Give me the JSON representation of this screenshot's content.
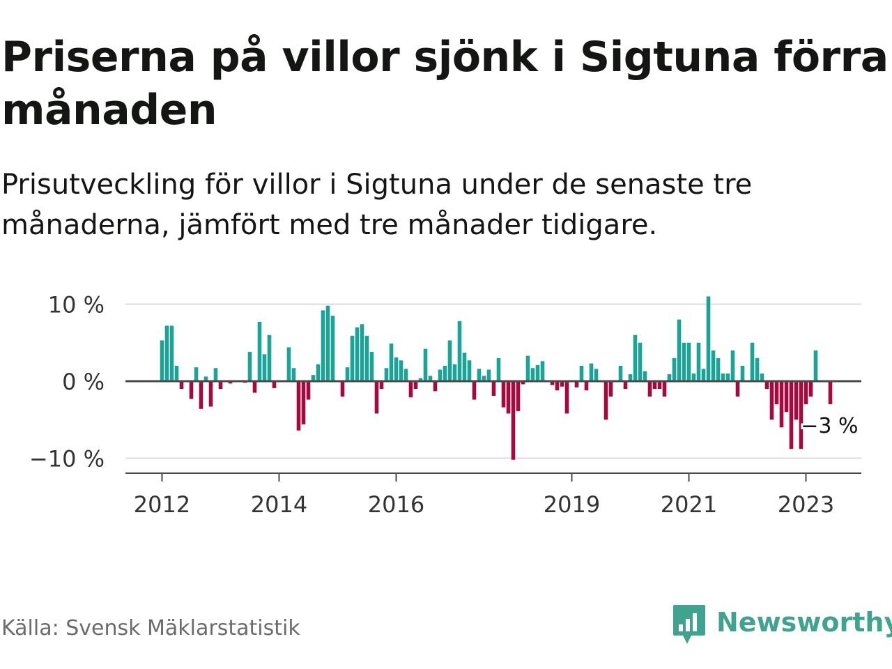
{
  "title": "Priserna på villor sjönk i Sigtuna förra månaden",
  "subtitle": "Prisutveckling för villor i Sigtuna under de senaste tre månaderna, jämfört med tre månader tidigare.",
  "source": "Källa: Svensk Mäklarstatistik",
  "logo": {
    "text": "Newsworthy",
    "icon": "newsworthy-logo-icon"
  },
  "colors": {
    "positive": "#1aa396",
    "negative": "#a50a3e",
    "grid": "#dddddd",
    "zero_line": "#4a4a4a",
    "axis_text": "#333333"
  },
  "chart_data": {
    "type": "bar",
    "title": "Priserna på villor sjönk i Sigtuna förra månaden",
    "xlabel": "",
    "ylabel": "",
    "ylim": [
      -12,
      12
    ],
    "y_ticks": [
      {
        "value": 10,
        "label": "10 %"
      },
      {
        "value": 0,
        "label": "0 %"
      },
      {
        "value": -10,
        "label": "−10 %"
      }
    ],
    "start": "2012-01",
    "x_ticks": [
      {
        "index": 0,
        "label": "2012"
      },
      {
        "index": 24,
        "label": "2014"
      },
      {
        "index": 48,
        "label": "2016"
      },
      {
        "index": 84,
        "label": "2019"
      },
      {
        "index": 108,
        "label": "2021"
      },
      {
        "index": 132,
        "label": "2023"
      }
    ],
    "last_label": "−3 %",
    "units": "%",
    "values": [
      5.3,
      7.2,
      7.2,
      2.0,
      -1.0,
      0,
      -2.3,
      1.8,
      -3.6,
      0.6,
      -3.3,
      1.7,
      -1.0,
      0,
      -0.3,
      0,
      0,
      -0.2,
      3.8,
      -1.5,
      7.7,
      3.5,
      6.0,
      -0.9,
      0,
      0,
      4.4,
      1.7,
      -6.4,
      -5.6,
      -2.4,
      0.8,
      2.2,
      9.2,
      9.8,
      8.5,
      0,
      -2.0,
      1.8,
      5.9,
      7.0,
      7.4,
      5.9,
      3.8,
      -4.2,
      -1.0,
      1.7,
      4.9,
      3.1,
      2.7,
      1.6,
      -2.1,
      -1.0,
      0.4,
      4.2,
      0.7,
      -1.3,
      1.5,
      2.0,
      5.3,
      2.2,
      7.8,
      3.7,
      2.7,
      -2.4,
      1.6,
      0.7,
      1.5,
      -1.9,
      3.0,
      -3.4,
      -4.2,
      -10.2,
      -3.9,
      -0.4,
      3.3,
      1.7,
      2.1,
      2.6,
      0,
      -0.5,
      -1.2,
      -0.7,
      -4.2,
      0,
      -0.8,
      2.0,
      -1.2,
      2.3,
      1.6,
      0,
      -5.0,
      -2.0,
      0,
      2.0,
      -1.0,
      0.9,
      6.0,
      5.0,
      1.3,
      -2.0,
      -1.0,
      -1.0,
      -2.0,
      0.9,
      3.0,
      8.0,
      5.0,
      5.0,
      1.0,
      5.0,
      1.6,
      11.0,
      4.0,
      3.0,
      1.0,
      1.0,
      4.0,
      -2.0,
      2.0,
      0,
      5.0,
      3.0,
      1.0,
      -1.0,
      -5.0,
      -3.0,
      -6.0,
      -4.0,
      -8.8,
      -5.0,
      -8.8,
      -3.0,
      -2.0,
      4.0,
      0,
      0,
      -3.0
    ]
  }
}
